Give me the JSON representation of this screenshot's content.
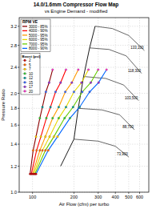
{
  "chart_data": {
    "type": "line",
    "title": "14.0/1.6mm Compressor Flow Map",
    "subtitle": "vs Engine Demand - modified",
    "x_label": "Air Flow (cfm) per turbo",
    "y_label": "Pressure Ratio",
    "log": true,
    "grid": true,
    "legend": "top-left",
    "legend_title": "RPM VE",
    "xlim": [
      80,
      700
    ],
    "ylim": [
      1.0,
      3.4
    ],
    "xticks": [
      100,
      200,
      300,
      400,
      500,
      600
    ],
    "yticks": [
      {
        "value": 1,
        "label": "1.0"
      },
      1.2,
      1.4,
      1.6,
      1.8,
      {
        "value": 2,
        "label": "2.0"
      },
      2.4,
      2.8,
      3.2
    ],
    "series": [
      {
        "name": "3000 - 85%",
        "color": "#8b0000",
        "marker": "circle",
        "x": [
          96,
          101,
          106,
          113,
          118,
          125,
          132,
          140
        ],
        "values": [
          1.136,
          1.34,
          1.476,
          1.68,
          1.816,
          2.02,
          2.156,
          2.361
        ]
      },
      {
        "name": "4000 - 90%",
        "color": "#ff0000",
        "marker": "circle",
        "x": [
          98,
          107,
          115,
          126,
          135,
          147,
          160,
          175
        ],
        "values": [
          1.136,
          1.34,
          1.476,
          1.68,
          1.816,
          2.02,
          2.156,
          2.361
        ]
      },
      {
        "name": "5000 - 95%",
        "color": "#ff9900",
        "marker": "circle",
        "x": [
          100,
          113,
          124,
          140,
          155,
          173,
          193,
          215
        ],
        "values": [
          1.136,
          1.34,
          1.476,
          1.68,
          1.816,
          2.02,
          2.156,
          2.361
        ]
      },
      {
        "name": "6000 - 95%",
        "color": "#e6d800",
        "marker": "circle",
        "x": [
          102,
          118,
          133,
          155,
          175,
          200,
          227,
          255
        ],
        "values": [
          1.136,
          1.34,
          1.476,
          1.68,
          1.816,
          2.02,
          2.156,
          2.361
        ]
      },
      {
        "name": "7000 - 95%",
        "color": "#66cc00",
        "marker": "circle",
        "x": [
          104,
          124,
          143,
          171,
          197,
          230,
          265,
          300
        ],
        "values": [
          1.136,
          1.34,
          1.476,
          1.68,
          1.816,
          2.02,
          2.156,
          2.361
        ]
      },
      {
        "name": "8000 - 90%",
        "color": "#0066ff",
        "marker": "circle",
        "x": [
          106,
          130,
          152,
          187,
          220,
          260,
          302,
          345
        ],
        "values": [
          1.136,
          1.34,
          1.476,
          1.68,
          1.816,
          2.02,
          2.156,
          2.361
        ]
      }
    ],
    "boost": {
      "title": "Boost (psi)",
      "values": [
        2,
        5,
        7,
        10,
        12,
        15,
        17,
        20
      ],
      "colors": [
        "#cc0000",
        "#ff6600",
        "#ffcc00",
        "#33cc33",
        "#009999",
        "#3366ff",
        "#9933cc",
        "#ff33cc"
      ]
    },
    "surge_line": {
      "color": "#000000",
      "line_style": "solid",
      "x": [
        160,
        200,
        215,
        235,
        260,
        285
      ],
      "values": [
        1.2,
        1.45,
        1.8,
        2.25,
        2.75,
        3.2
      ]
    },
    "map_lines": [
      {
        "name": "73,900",
        "color": "#000000",
        "line_style": "solid",
        "x": [
          200,
          300,
          400,
          500
        ],
        "values": [
          1.45,
          1.43,
          1.38,
          1.28
        ]
      },
      {
        "name": "88,700",
        "color": "#000000",
        "line_style": "solid",
        "x": [
          215,
          320,
          430,
          550
        ],
        "values": [
          1.8,
          1.78,
          1.72,
          1.55
        ]
      },
      {
        "name": "103,500",
        "color": "#000000",
        "line_style": "solid",
        "x": [
          235,
          340,
          460,
          590
        ],
        "values": [
          2.25,
          2.22,
          2.12,
          1.9
        ]
      },
      {
        "name": "118,300",
        "color": "#000000",
        "line_style": "solid",
        "x": [
          260,
          360,
          480,
          620
        ],
        "values": [
          2.75,
          2.72,
          2.6,
          2.3
        ]
      },
      {
        "name": "133,100",
        "color": "#000000",
        "line_style": "solid",
        "x": [
          285,
          380,
          500,
          650
        ],
        "values": [
          3.2,
          3.15,
          3.0,
          2.7
        ]
      }
    ]
  }
}
